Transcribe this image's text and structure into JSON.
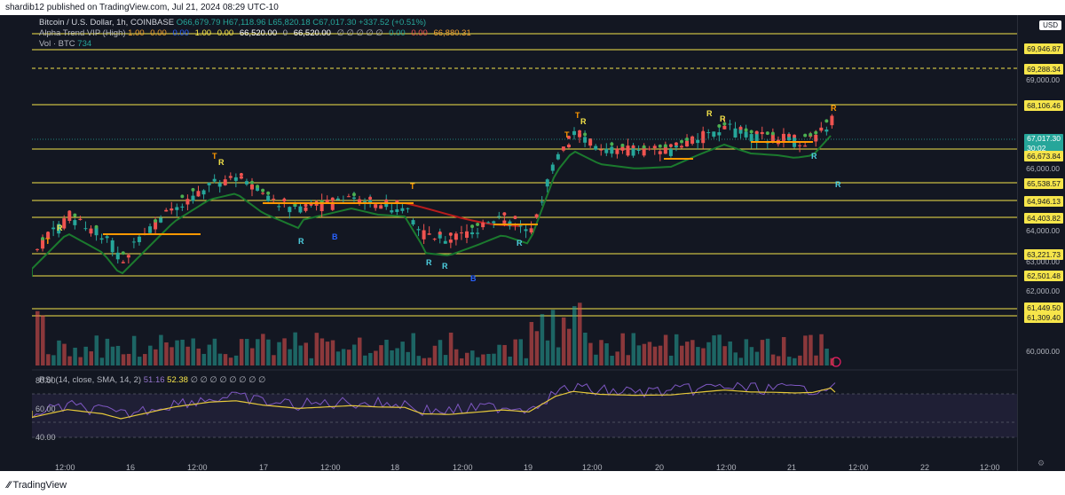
{
  "header": {
    "publisher_line": "shardib12 published on TradingView.com, Jul 21, 2024 08:29 UTC-10"
  },
  "legend": {
    "symbol": "Bitcoin / U.S. Dollar, 1h, COINBASE",
    "ohlc": "O66,679.79  H67,118.96  L65,820.18  C67,017.30  +337.52 (+0.51%)",
    "indicator": "Alpha Trend VIP (High)",
    "indicator_values": [
      "1.00",
      "0.00",
      "0.00",
      "1.00",
      "0.00",
      "66,520.00",
      "0",
      "66,520.00",
      "∅ ∅ ∅ ∅ ∅",
      "0.00",
      "0.00",
      "66,880.31"
    ],
    "volume": "Vol · BTC",
    "volume_value": "734"
  },
  "price_axis": {
    "currency": "USD",
    "highlighted_levels": [
      "69,946.87",
      "69,288.34",
      "68,106.46",
      "66,673.84",
      "65,538.57",
      "64,946.13",
      "64,403.82",
      "63,221.73",
      "62,501.48",
      "61,449.50",
      "61,309.40"
    ],
    "plain_ticks": [
      "69,000.00",
      "66,000.00",
      "64,000.00",
      "63,000.00",
      "62,000.00",
      "60,000.00"
    ],
    "current_price": "67,017.30",
    "countdown": "30:02"
  },
  "rsi": {
    "legend": "RSI (14, close, SMA, 14, 2)",
    "value1": "51.16",
    "value2": "52.38",
    "extra": "∅ ∅ ∅ ∅ ∅ ∅ ∅ ∅",
    "ticks": [
      "80.00",
      "60.00",
      "40.00"
    ]
  },
  "time_axis": [
    "12:00",
    "16",
    "12:00",
    "17",
    "12:00",
    "18",
    "12:00",
    "19",
    "12:00",
    "20",
    "12:00",
    "21",
    "12:00",
    "22",
    "12:00"
  ],
  "markers": {
    "T": "T",
    "R": "R",
    "B": "B"
  },
  "footer": {
    "brand": "TradingView"
  },
  "colors": {
    "bg": "#131722",
    "up": "#26a69a",
    "down": "#ef5350",
    "level": "#f6e54a",
    "trend_green": "#1b7a2e",
    "trend_red": "#b71c1c",
    "rsi_line": "#7e57c2",
    "rsi_ma": "#e6c93a"
  }
}
